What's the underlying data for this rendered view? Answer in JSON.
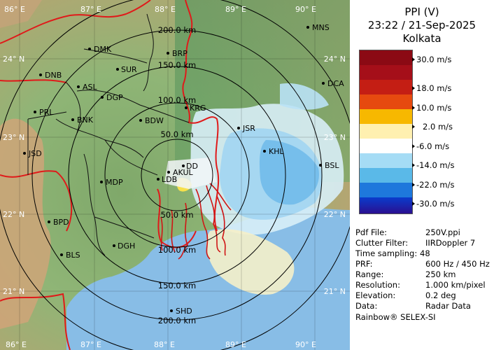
{
  "panel": {
    "title": "PPI (V)",
    "datetime": "23:22 / 21-Sep-2025",
    "station": "Kolkata",
    "scale": [
      {
        "label": "30.0 m/s",
        "color": "#9c0a1e"
      },
      {
        "label": "18.0 m/s",
        "color": "#e64a0f"
      },
      {
        "label": "10.0 m/s",
        "color": "#f7b800"
      },
      {
        "label": "2.0 m/s",
        "color": "#ffffff"
      },
      {
        "label": "-6.0 m/s",
        "color": "#5ab9e8"
      },
      {
        "label": "-14.0 m/s",
        "color": "#1e78dc"
      },
      {
        "label": "-22.0 m/s",
        "color": "#0a28c8"
      },
      {
        "label": "-30.0 m/s",
        "color": "#3c0f78"
      }
    ],
    "info": [
      {
        "key": "Pdf File:",
        "value": "250V.ppi"
      },
      {
        "key": "Clutter Filter:",
        "value": "IIRDoppler 7"
      },
      {
        "key": "Time sampling:",
        "value": "48"
      },
      {
        "key": "PRF:",
        "value": "600 Hz / 450 Hz"
      },
      {
        "key": "Range:",
        "value": "250 km"
      },
      {
        "key": "Resolution:",
        "value": "1.000 km/pixel"
      },
      {
        "key": "Elevation:",
        "value": "0.2 deg"
      },
      {
        "key": "Data:",
        "value": "Radar Data"
      }
    ],
    "footer": "Rainbow® SELEX-SI"
  },
  "map": {
    "lon_top": [
      "86° E",
      "87° E",
      "88° E",
      "89° E",
      "90° E"
    ],
    "lon_bottom": [
      "86° E",
      "87° E",
      "88° E",
      "89° E",
      "90° E"
    ],
    "lat_left": [
      "24° N",
      "23° N",
      "22° N",
      "21° N"
    ],
    "lat_right": [
      "24° N",
      "23° N",
      "22° N",
      "21° N"
    ],
    "range_rings": [
      "200.0 km",
      "150.0 km",
      "100.0 km",
      "50.0 km",
      "50.0 km",
      "100.0 km",
      "150.0 km",
      "200.0 km"
    ],
    "cities": [
      "MNS",
      "DMK",
      "BRP",
      "DNB",
      "SUR",
      "ASL",
      "DGP",
      "KRG",
      "DCA",
      "PRL",
      "BNK",
      "BDW",
      "JSR",
      "JSD",
      "KHL",
      "BSL",
      "DD",
      "AKUL",
      "LDB",
      "MDP",
      "BPD",
      "DGH",
      "BLS",
      "SHD"
    ]
  }
}
